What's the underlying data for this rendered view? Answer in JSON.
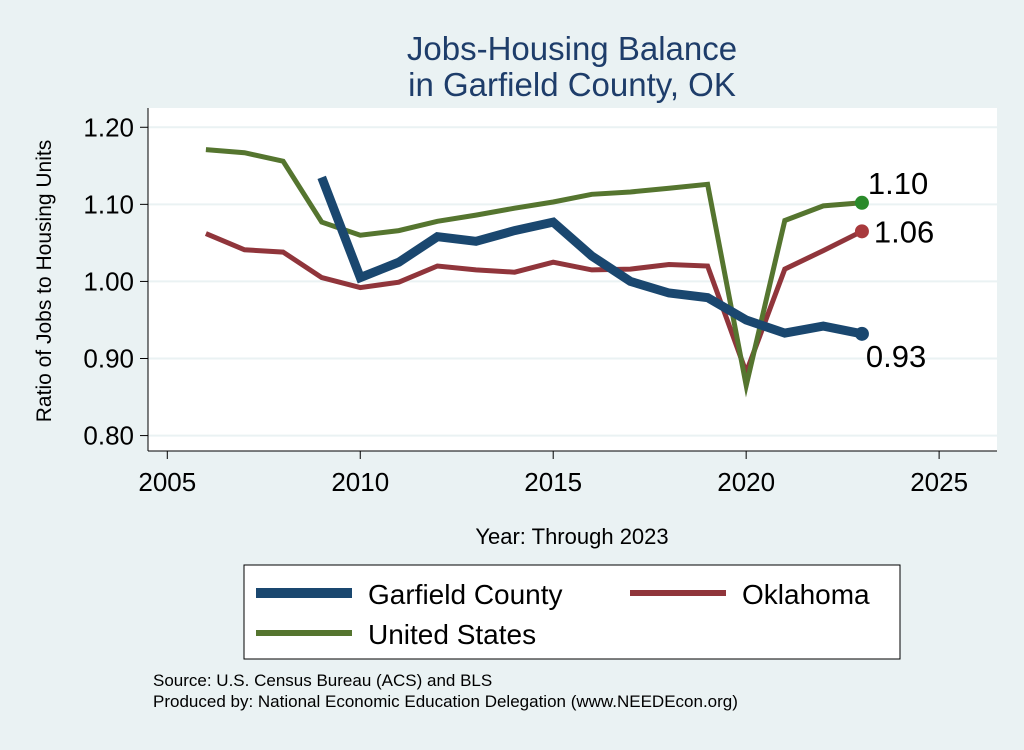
{
  "chart_data": {
    "type": "line",
    "title_lines": [
      "Jobs-Housing Balance",
      "in Garfield County, OK"
    ],
    "xlabel": "Year: Through 2023",
    "ylabel": "Ratio of Jobs to Housing Units",
    "xlim": [
      2004.5,
      2026.5
    ],
    "ylim": [
      0.78,
      1.225
    ],
    "xticks": [
      2005,
      2010,
      2015,
      2020,
      2025
    ],
    "xtick_labels": [
      "2005",
      "2010",
      "2015",
      "2020",
      "2025"
    ],
    "yticks": [
      0.8,
      0.9,
      1.0,
      1.1,
      1.2
    ],
    "ytick_labels": [
      "0.80",
      "0.90",
      "1.00",
      "1.10",
      "1.20"
    ],
    "grid": true,
    "series": [
      {
        "name": "Garfield County",
        "color": "#1a476f",
        "x": [
          2009,
          2010,
          2011,
          2012,
          2013,
          2014,
          2015,
          2016,
          2017,
          2018,
          2019,
          2020,
          2021,
          2022,
          2023
        ],
        "values": [
          1.135,
          1.005,
          1.025,
          1.058,
          1.052,
          1.066,
          1.077,
          1.033,
          1.0,
          0.985,
          0.979,
          0.95,
          0.933,
          0.942,
          0.932
        ],
        "end_label": "0.93"
      },
      {
        "name": "Oklahoma",
        "color": "#90353b",
        "x": [
          2006,
          2007,
          2008,
          2009,
          2010,
          2011,
          2012,
          2013,
          2014,
          2015,
          2016,
          2017,
          2018,
          2019,
          2020,
          2021,
          2022,
          2023
        ],
        "values": [
          1.062,
          1.041,
          1.038,
          1.005,
          0.992,
          0.999,
          1.02,
          1.015,
          1.012,
          1.025,
          1.015,
          1.016,
          1.022,
          1.02,
          0.882,
          1.016,
          1.04,
          1.065
        ],
        "end_label": "1.06"
      },
      {
        "name": "United States",
        "color": "#55752f",
        "x": [
          2006,
          2007,
          2008,
          2009,
          2010,
          2011,
          2012,
          2013,
          2014,
          2015,
          2016,
          2017,
          2018,
          2019,
          2020,
          2021,
          2022,
          2023
        ],
        "values": [
          1.171,
          1.167,
          1.156,
          1.077,
          1.06,
          1.066,
          1.078,
          1.086,
          1.095,
          1.103,
          1.113,
          1.116,
          1.121,
          1.126,
          0.865,
          1.079,
          1.098,
          1.102
        ],
        "end_label": "1.10"
      }
    ],
    "end_markers": [
      {
        "series": "United States",
        "color": "#2a8a2a"
      },
      {
        "series": "Oklahoma",
        "color": "#a83a3d"
      },
      {
        "series": "Garfield County",
        "color": "#1a476f"
      }
    ],
    "legend": {
      "placement": "bottom",
      "entries": [
        "Garfield County",
        "Oklahoma",
        "United States"
      ]
    },
    "source_lines": [
      "Source: U.S. Census Bureau (ACS) and BLS",
      "Produced by: National Economic Education Delegation (www.NEEDEcon.org)"
    ]
  }
}
